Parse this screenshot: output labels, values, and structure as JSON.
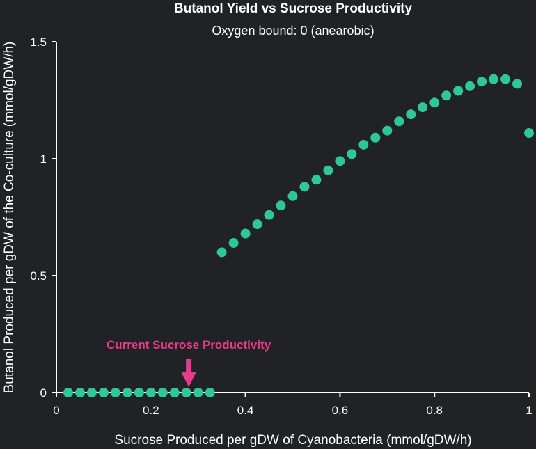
{
  "chart_data": {
    "type": "scatter",
    "title": "Butanol Yield vs Sucrose Productivity",
    "subtitle": "Oxygen bound: 0 (anearobic)",
    "xlabel": "Sucrose Produced per gDW of Cyanobacteria (mmol/gDW/h)",
    "ylabel": "Butanol Produced per gDW of the Co-culture (mmol/gDW/h)",
    "xlim": [
      0,
      1
    ],
    "ylim": [
      0,
      1.5
    ],
    "x_ticks": [
      0,
      0.2,
      0.4,
      0.6,
      0.8,
      1
    ],
    "x_tick_labels": [
      "0",
      "0.2",
      "0.4",
      "0.6",
      "0.8",
      "1"
    ],
    "y_ticks": [
      0,
      0.5,
      1,
      1.5
    ],
    "y_tick_labels": [
      "0",
      "0.5",
      "1",
      "1.5"
    ],
    "grid": false,
    "marker_color": "#2ec796",
    "background_color": "#202225",
    "series": [
      {
        "x": [
          0.025,
          0.05,
          0.075,
          0.1,
          0.125,
          0.15,
          0.175,
          0.2,
          0.225,
          0.25,
          0.275,
          0.3,
          0.325,
          0.35,
          0.375,
          0.4,
          0.425,
          0.45,
          0.475,
          0.5,
          0.525,
          0.55,
          0.575,
          0.6,
          0.625,
          0.65,
          0.675,
          0.7,
          0.725,
          0.75,
          0.775,
          0.8,
          0.825,
          0.85,
          0.875,
          0.9,
          0.925,
          0.95,
          0.975,
          1.0
        ],
        "y": [
          0,
          0,
          0,
          0,
          0,
          0,
          0,
          0,
          0,
          0,
          0,
          0,
          0,
          0.6,
          0.64,
          0.68,
          0.72,
          0.76,
          0.8,
          0.84,
          0.88,
          0.91,
          0.95,
          0.99,
          1.02,
          1.06,
          1.09,
          1.12,
          1.16,
          1.19,
          1.22,
          1.24,
          1.27,
          1.29,
          1.31,
          1.33,
          1.34,
          1.34,
          1.32,
          1.11
        ]
      }
    ],
    "annotation": {
      "text": "Current Sucrose Productivity",
      "x": 0.28,
      "color": "#e8398a"
    }
  }
}
